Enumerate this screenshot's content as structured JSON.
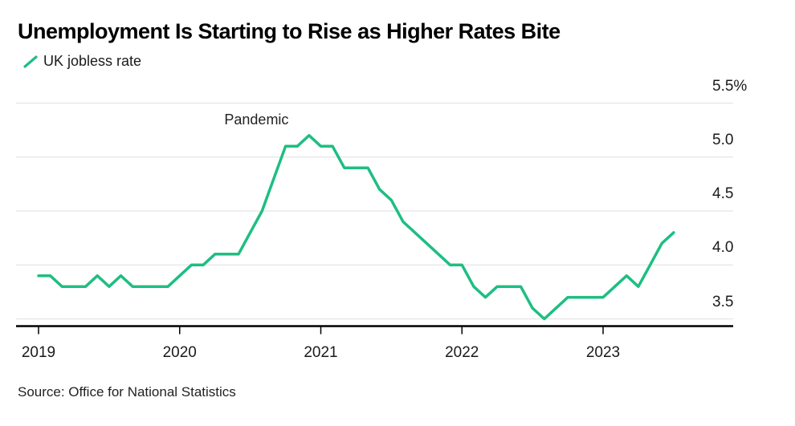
{
  "header": {
    "title": "Unemployment Is Starting to Rise as Higher Rates Bite",
    "legend": {
      "label": "UK jobless rate",
      "swatch": "diagonal-line-icon",
      "color": "#1ebe82"
    }
  },
  "chart_data": {
    "type": "line",
    "title": "Unemployment Is Starting to Rise as Higher Rates Bite",
    "unit": "%",
    "grid": "horizontal",
    "legend_position": "top-left",
    "ylim": [
      3.4,
      5.55
    ],
    "y_ticks": {
      "labels": [
        "5.5%",
        "5.0",
        "4.5",
        "4.0",
        "3.5"
      ],
      "values": [
        5.5,
        5.0,
        4.5,
        4.0,
        3.5
      ]
    },
    "x_ticks": {
      "labels": [
        "2019",
        "2020",
        "2021",
        "2022",
        "2023"
      ],
      "month_indices": [
        0,
        12,
        24,
        36,
        48
      ]
    },
    "annotation": {
      "text": "Pandemic",
      "x_index": 15.8,
      "y_value": 5.42
    },
    "series": [
      {
        "name": "UK jobless rate",
        "color": "#1ebe82",
        "x": [
          "2019-01",
          "2019-02",
          "2019-03",
          "2019-04",
          "2019-05",
          "2019-06",
          "2019-07",
          "2019-08",
          "2019-09",
          "2019-10",
          "2019-11",
          "2019-12",
          "2020-01",
          "2020-02",
          "2020-03",
          "2020-04",
          "2020-05",
          "2020-06",
          "2020-07",
          "2020-08",
          "2020-09",
          "2020-10",
          "2020-11",
          "2020-12",
          "2021-01",
          "2021-02",
          "2021-03",
          "2021-04",
          "2021-05",
          "2021-06",
          "2021-07",
          "2021-08",
          "2021-09",
          "2021-10",
          "2021-11",
          "2021-12",
          "2022-01",
          "2022-02",
          "2022-03",
          "2022-04",
          "2022-05",
          "2022-06",
          "2022-07",
          "2022-08",
          "2022-09",
          "2022-10",
          "2022-11",
          "2022-12",
          "2023-01",
          "2023-02",
          "2023-03",
          "2023-04",
          "2023-05",
          "2023-06",
          "2023-07"
        ],
        "values": [
          3.9,
          3.9,
          3.8,
          3.8,
          3.8,
          3.9,
          3.8,
          3.9,
          3.8,
          3.8,
          3.8,
          3.8,
          3.9,
          4.0,
          4.0,
          4.1,
          4.1,
          4.1,
          4.3,
          4.5,
          4.8,
          5.1,
          5.1,
          5.2,
          5.1,
          5.1,
          4.9,
          4.9,
          4.9,
          4.7,
          4.6,
          4.4,
          4.3,
          4.2,
          4.1,
          4.0,
          4.0,
          3.8,
          3.7,
          3.8,
          3.8,
          3.8,
          3.6,
          3.5,
          3.6,
          3.7,
          3.7,
          3.7,
          3.7,
          3.8,
          3.9,
          3.8,
          4.0,
          4.2,
          4.3
        ]
      }
    ]
  },
  "footer": {
    "source": "Source: Office for National Statistics"
  }
}
